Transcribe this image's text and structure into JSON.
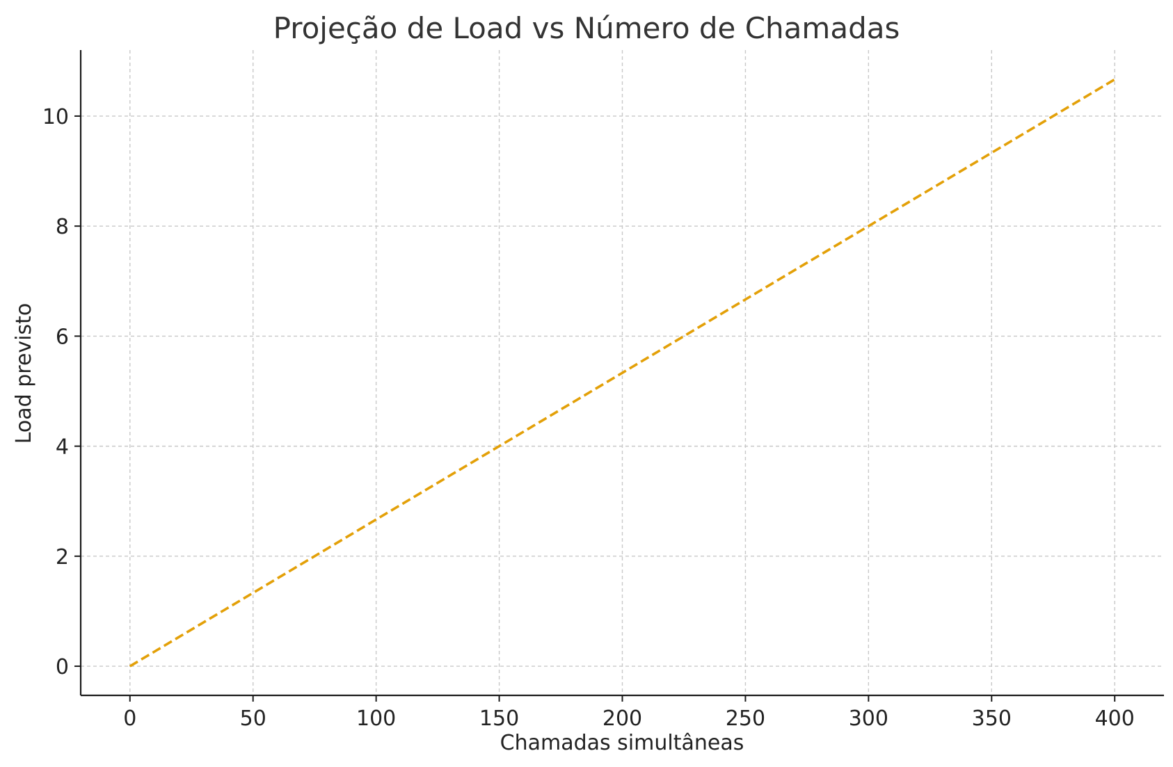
{
  "chart_data": {
    "type": "line",
    "title": "Projeção de Load vs Número de Chamadas",
    "xlabel": "Chamadas simultâneas",
    "ylabel": "Load previsto",
    "xlim": [
      -20,
      420
    ],
    "ylim": [
      -0.53,
      11.2
    ],
    "x_ticks": [
      0,
      50,
      100,
      150,
      200,
      250,
      300,
      350,
      400
    ],
    "y_ticks": [
      0,
      2,
      4,
      6,
      8,
      10
    ],
    "grid": true,
    "series": [
      {
        "color": "#e3a008",
        "line_style": "dashed",
        "x": [
          0,
          50,
          100,
          150,
          200,
          250,
          300,
          350,
          400
        ],
        "y": [
          0,
          1.333,
          2.667,
          4.0,
          5.333,
          6.667,
          8.0,
          9.333,
          10.667
        ]
      }
    ]
  }
}
